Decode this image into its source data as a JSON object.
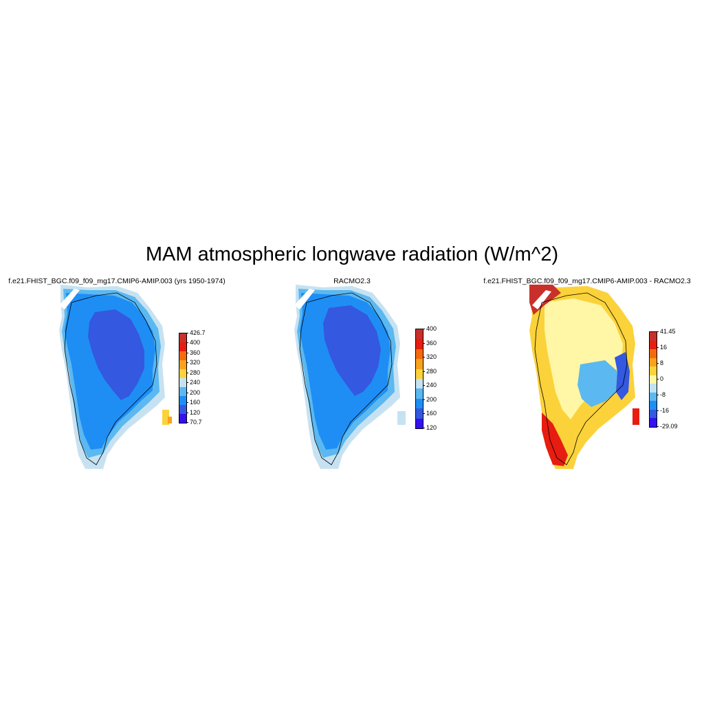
{
  "title": "MAM atmospheric longwave radiation (W/m^2)",
  "panels": [
    {
      "id": "model",
      "title": "f.e21.FHIST_BGC.f09_f09_mg17.CMIP6-AMIP.003 (yrs 1950-1974)",
      "colorbar": {
        "colors": [
          "#3311f0",
          "#3458e0",
          "#1e8ef5",
          "#5bb8f0",
          "#c6e2f2",
          "#fbd23a",
          "#f9a21c",
          "#f46a0f",
          "#e61d10",
          "#c9302b"
        ],
        "labels": [
          "426.7",
          "400",
          "360",
          "320",
          "280",
          "240",
          "200",
          "160",
          "120",
          "70.7"
        ]
      },
      "field_summary": "interior ~120-160, coast ~200-240, southeast ~280-320"
    },
    {
      "id": "obs",
      "title": "RACMO2.3",
      "colorbar": {
        "colors": [
          "#3311f0",
          "#3458e0",
          "#1e8ef5",
          "#5bb8f0",
          "#c6e2f2",
          "#fbd23a",
          "#f9a21c",
          "#f46a0f",
          "#e61d10",
          "#c9302b"
        ],
        "labels": [
          "400",
          "360",
          "320",
          "280",
          "240",
          "200",
          "160",
          "120"
        ]
      }
    },
    {
      "id": "diff",
      "title": "f.e21.FHIST_BGC.f09_f09_mg17.CMIP6-AMIP.003 - RACMO2.3",
      "colorbar": {
        "colors": [
          "#3311f0",
          "#3458e0",
          "#1e8ef5",
          "#5bb8f0",
          "#bfe3f0",
          "#fff7a6",
          "#fbd23a",
          "#f9a21c",
          "#f46a0f",
          "#e61d10",
          "#c9302b"
        ],
        "labels": [
          "41.45",
          "16",
          "8",
          "0",
          "-8",
          "-16",
          "-29.09"
        ]
      }
    }
  ]
}
